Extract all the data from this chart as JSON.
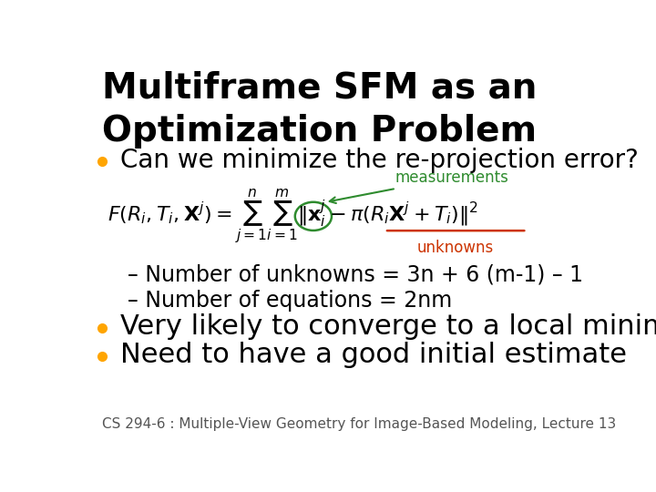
{
  "title_line1": "Multiframe SFM as an",
  "title_line2": "Optimization Problem",
  "title_fontsize": 28,
  "bullet_color": "#FFA500",
  "text_color": "#000000",
  "bg_color": "#FFFFFF",
  "bullet1": "Can we minimize the re-projection error?",
  "bullet1_fontsize": 20,
  "measurements_color": "#2E8B2E",
  "unknowns_color": "#CC3300",
  "sub_bullet1": "– Number of unknowns = 3n + 6 (m-1) – 1",
  "sub_bullet2": "– Number of equations = 2nm",
  "sub_fontsize": 17,
  "bullet2": "Very likely to converge to a local minima",
  "bullet3": "Need to have a good initial estimate",
  "bullet23_fontsize": 22,
  "footer": "CS 294-6 : Multiple-View Geometry for Image-Based Modeling, Lecture 13",
  "footer_fontsize": 11
}
